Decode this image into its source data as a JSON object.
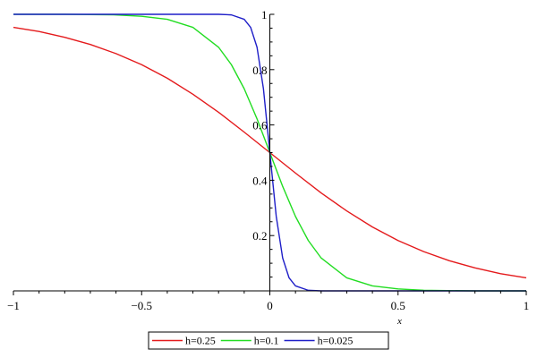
{
  "chart_data": {
    "type": "line",
    "title": "",
    "xlabel": "x",
    "ylabel": "",
    "xlim": [
      -1,
      1
    ],
    "ylim": [
      0,
      1
    ],
    "x_ticks": [
      -1,
      -0.5,
      0,
      0.5,
      1
    ],
    "x_tick_labels": [
      "−1",
      "−0.5",
      "0",
      "0.5",
      "1"
    ],
    "y_ticks": [
      0.2,
      0.4,
      0.6,
      0.8,
      1
    ],
    "y_tick_labels": [
      "0.2",
      "0.4",
      "0.6",
      "0.8",
      "1"
    ],
    "grid": false,
    "legend_position": "bottom-center",
    "series": [
      {
        "name": "h=0.25",
        "color": "#e41a1c",
        "x": [
          -1,
          -0.9,
          -0.8,
          -0.7,
          -0.6,
          -0.5,
          -0.4,
          -0.3,
          -0.2,
          -0.1,
          0,
          0.1,
          0.2,
          0.3,
          0.4,
          0.5,
          0.6,
          0.7,
          0.8,
          0.9,
          1
        ],
        "y": [
          0.953,
          0.938,
          0.917,
          0.891,
          0.858,
          0.818,
          0.769,
          0.711,
          0.646,
          0.574,
          0.5,
          0.426,
          0.354,
          0.289,
          0.231,
          0.182,
          0.142,
          0.109,
          0.083,
          0.062,
          0.047
        ]
      },
      {
        "name": "h=0.1",
        "color": "#22dd22",
        "x": [
          -1,
          -0.8,
          -0.6,
          -0.5,
          -0.4,
          -0.3,
          -0.2,
          -0.15,
          -0.1,
          -0.05,
          0,
          0.05,
          0.1,
          0.15,
          0.2,
          0.3,
          0.4,
          0.5,
          0.6,
          0.8,
          1
        ],
        "y": [
          1.0,
          1.0,
          0.998,
          0.993,
          0.982,
          0.953,
          0.881,
          0.818,
          0.731,
          0.622,
          0.5,
          0.378,
          0.269,
          0.182,
          0.119,
          0.047,
          0.018,
          0.007,
          0.002,
          0.0,
          0.0
        ]
      },
      {
        "name": "h=0.025",
        "color": "#1f1fc8",
        "x": [
          -1,
          -0.3,
          -0.2,
          -0.15,
          -0.1,
          -0.075,
          -0.05,
          -0.025,
          0,
          0.025,
          0.05,
          0.075,
          0.1,
          0.15,
          0.2,
          0.3,
          1
        ],
        "y": [
          1.0,
          1.0,
          1.0,
          0.998,
          0.982,
          0.953,
          0.881,
          0.731,
          0.5,
          0.269,
          0.119,
          0.047,
          0.018,
          0.002,
          0.0,
          0.0,
          0.0
        ]
      }
    ]
  }
}
